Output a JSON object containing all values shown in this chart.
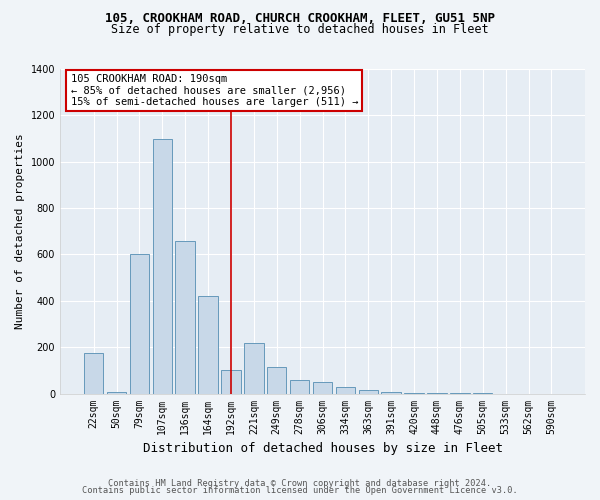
{
  "title_top": "105, CROOKHAM ROAD, CHURCH CROOKHAM, FLEET, GU51 5NP",
  "title_sub": "Size of property relative to detached houses in Fleet",
  "xlabel": "Distribution of detached houses by size in Fleet",
  "ylabel": "Number of detached properties",
  "categories": [
    "22sqm",
    "50sqm",
    "79sqm",
    "107sqm",
    "136sqm",
    "164sqm",
    "192sqm",
    "221sqm",
    "249sqm",
    "278sqm",
    "306sqm",
    "334sqm",
    "363sqm",
    "391sqm",
    "420sqm",
    "448sqm",
    "476sqm",
    "505sqm",
    "533sqm",
    "562sqm",
    "590sqm"
  ],
  "values": [
    175,
    5,
    600,
    1100,
    660,
    420,
    100,
    220,
    115,
    60,
    50,
    28,
    15,
    8,
    4,
    2,
    2,
    1,
    0,
    0,
    0
  ],
  "bar_color": "#c8d8e8",
  "bar_edge_color": "#6699bb",
  "highlight_index": 6,
  "highlight_color": "#cc0000",
  "annotation_text": "105 CROOKHAM ROAD: 190sqm\n← 85% of detached houses are smaller (2,956)\n15% of semi-detached houses are larger (511) →",
  "annotation_box_color": "#ffffff",
  "annotation_box_edge": "#cc0000",
  "footer1": "Contains HM Land Registry data © Crown copyright and database right 2024.",
  "footer2": "Contains public sector information licensed under the Open Government Licence v3.0.",
  "ylim": [
    0,
    1400
  ],
  "yticks": [
    0,
    200,
    400,
    600,
    800,
    1000,
    1200,
    1400
  ],
  "bg_color": "#f0f4f8",
  "plot_bg": "#e6edf4",
  "grid_color": "#ffffff"
}
